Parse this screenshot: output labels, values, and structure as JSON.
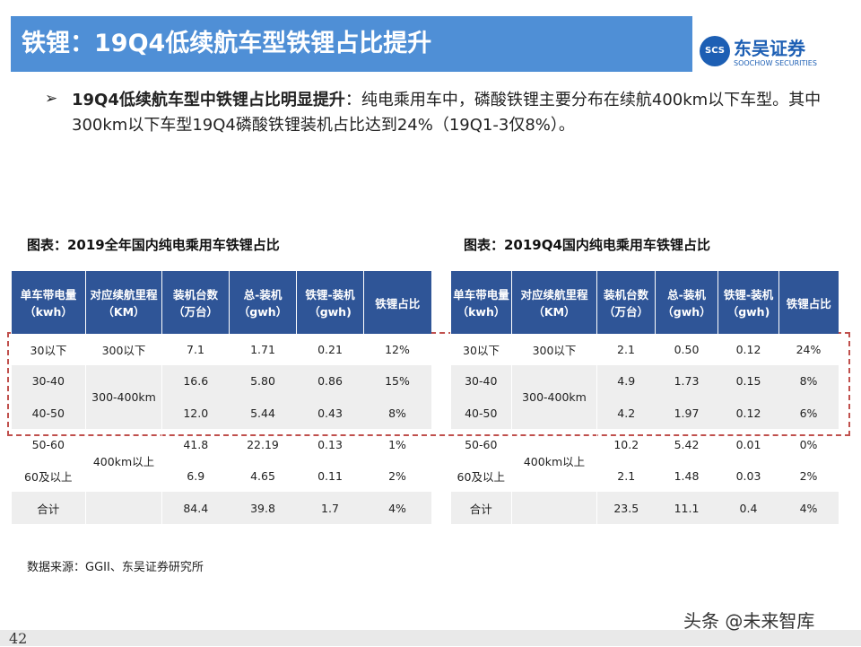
{
  "header": {
    "title": "铁锂：19Q4低续航车型铁锂占比提升",
    "logo_name": "东吴证券",
    "logo_sub": "SOOCHOW SECURITIES",
    "logo_mark": "SCS"
  },
  "bullet": {
    "bold": "19Q4低续航车型中铁锂占比明显提升",
    "text": "：纯电乘用车中，磷酸铁锂主要分布在续航400km以下车型。其中300km以下车型19Q4磷酸铁锂装机占比达到24%（19Q1-3仅8%）。"
  },
  "tables": [
    {
      "title": "图表：2019全年国内纯电乘用车铁锂占比",
      "columns": [
        "单车带电量\n（kwh）",
        "对应续航里程\n（KM）",
        "装机台数\n（万台）",
        "总-装机\n（gwh）",
        "铁锂-装机\n（gwh)",
        "铁锂占比"
      ],
      "rows": [
        [
          "30以下",
          "300以下",
          "7.1",
          "1.71",
          "0.21",
          "12%"
        ],
        [
          "30-40",
          "300-400km",
          "16.6",
          "5.80",
          "0.86",
          "15%"
        ],
        [
          "40-50",
          null,
          "12.0",
          "5.44",
          "0.43",
          "8%"
        ],
        [
          "50-60",
          "400km以上",
          "41.8",
          "22.19",
          "0.13",
          "1%"
        ],
        [
          "60及以上",
          null,
          "6.9",
          "4.65",
          "0.11",
          "2%"
        ]
      ],
      "total": {
        "label": "合计",
        "values": [
          "84.4",
          "39.8",
          "1.7",
          "4%"
        ]
      }
    },
    {
      "title": "图表：2019Q4国内纯电乘用车铁锂占比",
      "columns": [
        "单车带电量\n（kwh）",
        "对应续航里程\n（KM）",
        "装机台数\n（万台）",
        "总-装机\n（gwh）",
        "铁锂-装机\n（gwh)",
        "铁锂占比"
      ],
      "rows": [
        [
          "30以下",
          "300以下",
          "2.1",
          "0.50",
          "0.12",
          "24%"
        ],
        [
          "30-40",
          "300-400km",
          "4.9",
          "1.73",
          "0.15",
          "8%"
        ],
        [
          "40-50",
          null,
          "4.2",
          "1.97",
          "0.12",
          "6%"
        ],
        [
          "50-60",
          "400km以上",
          "10.2",
          "5.42",
          "0.01",
          "0%"
        ],
        [
          "60及以上",
          null,
          "2.1",
          "1.48",
          "0.03",
          "2%"
        ]
      ],
      "total": {
        "label": "合计",
        "values": [
          "23.5",
          "11.1",
          "0.4",
          "4%"
        ]
      }
    }
  ],
  "source": "数据来源：GGII、东吴证券研究所",
  "page_number": "42",
  "watermark": "头条 @未来智库"
}
